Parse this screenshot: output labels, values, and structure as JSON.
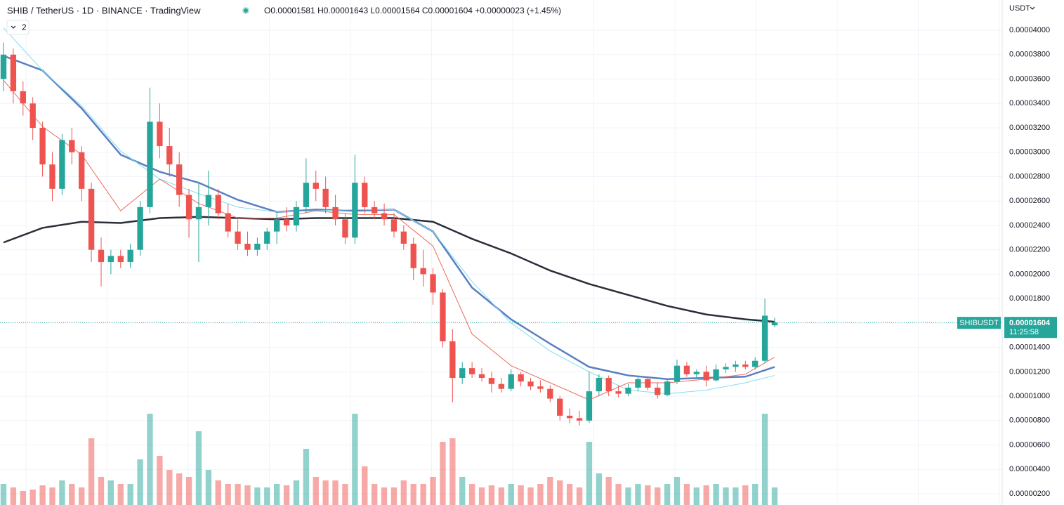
{
  "chart_data": {
    "type": "candlestick",
    "title": "SHIB / TetherUS · 1D · BINANCE · TradingView",
    "ohlc_text": "O0.00001581 H0.00001643 L0.00001564 C0.00001604 +0.00000023 (+1.45%)",
    "indicator_count": 2,
    "currency": "USDT",
    "symbol": "SHIBUSDT",
    "last_price_label": "0.00001604",
    "countdown": "11:25:58",
    "up_color": "#26a69a",
    "down_color": "#ef5350",
    "ylim": [
      1.08e-06,
      4.248e-05
    ],
    "yticks": [
      {
        "value": 4e-05,
        "label": "0.00004000"
      },
      {
        "value": 3.8e-05,
        "label": "0.00003800"
      },
      {
        "value": 3.6e-05,
        "label": "0.00003600"
      },
      {
        "value": 3.4e-05,
        "label": "0.00003400"
      },
      {
        "value": 3.2e-05,
        "label": "0.00003200"
      },
      {
        "value": 3e-05,
        "label": "0.00003000"
      },
      {
        "value": 2.8e-05,
        "label": "0.00002800"
      },
      {
        "value": 2.6e-05,
        "label": "0.00002600"
      },
      {
        "value": 2.4e-05,
        "label": "0.00002400"
      },
      {
        "value": 2.2e-05,
        "label": "0.00002200"
      },
      {
        "value": 2e-05,
        "label": "0.00002000"
      },
      {
        "value": 1.8e-05,
        "label": "0.00001800"
      },
      {
        "value": 1.6e-05,
        "label": "0.00001600"
      },
      {
        "value": 1.4e-05,
        "label": "0.00001400"
      },
      {
        "value": 1.2e-05,
        "label": "0.00001200"
      },
      {
        "value": 1e-05,
        "label": "0.00001000"
      },
      {
        "value": 8e-06,
        "label": "0.00000800"
      },
      {
        "value": 6e-06,
        "label": "0.00000600"
      },
      {
        "value": 4e-06,
        "label": "0.00000400"
      },
      {
        "value": 2e-06,
        "label": "0.00000200"
      }
    ],
    "grid": true,
    "candles": [
      [
        3.6e-05,
        3.9e-05,
        3.5e-05,
        3.8e-05
      ],
      [
        3.8e-05,
        3.85e-05,
        3.4e-05,
        3.5e-05
      ],
      [
        3.5e-05,
        3.58e-05,
        3.3e-05,
        3.4e-05
      ],
      [
        3.4e-05,
        3.45e-05,
        3.1e-05,
        3.2e-05
      ],
      [
        3.2e-05,
        3.25e-05,
        2.8e-05,
        2.9e-05
      ],
      [
        2.9e-05,
        3e-05,
        2.6e-05,
        2.7e-05
      ],
      [
        2.7e-05,
        3.15e-05,
        2.65e-05,
        3.1e-05
      ],
      [
        3.1e-05,
        3.2e-05,
        2.9e-05,
        3e-05
      ],
      [
        3e-05,
        3.05e-05,
        2.6e-05,
        2.7e-05
      ],
      [
        2.7e-05,
        2.75e-05,
        2.1e-05,
        2.2e-05
      ],
      [
        2.2e-05,
        2.3e-05,
        1.9e-05,
        2.1e-05
      ],
      [
        2.1e-05,
        2.2e-05,
        2e-05,
        2.15e-05
      ],
      [
        2.15e-05,
        2.2e-05,
        2.05e-05,
        2.1e-05
      ],
      [
        2.1e-05,
        2.25e-05,
        2.05e-05,
        2.2e-05
      ],
      [
        2.2e-05,
        2.6e-05,
        2.15e-05,
        2.55e-05
      ],
      [
        2.55e-05,
        3.53e-05,
        2.5e-05,
        3.25e-05
      ],
      [
        3.25e-05,
        3.4e-05,
        2.95e-05,
        3.05e-05
      ],
      [
        3.05e-05,
        3.2e-05,
        2.8e-05,
        2.9e-05
      ],
      [
        2.9e-05,
        3e-05,
        2.55e-05,
        2.65e-05
      ],
      [
        2.65e-05,
        2.7e-05,
        2.3e-05,
        2.45e-05
      ],
      [
        2.45e-05,
        2.75e-05,
        2.1e-05,
        2.55e-05
      ],
      [
        2.55e-05,
        2.85e-05,
        2.4e-05,
        2.65e-05
      ],
      [
        2.65e-05,
        2.7e-05,
        2.45e-05,
        2.5e-05
      ],
      [
        2.5e-05,
        2.58e-05,
        2.3e-05,
        2.35e-05
      ],
      [
        2.35e-05,
        2.45e-05,
        2.2e-05,
        2.25e-05
      ],
      [
        2.25e-05,
        2.35e-05,
        2.15e-05,
        2.2e-05
      ],
      [
        2.2e-05,
        2.3e-05,
        2.15e-05,
        2.25e-05
      ],
      [
        2.25e-05,
        2.38e-05,
        2.2e-05,
        2.35e-05
      ],
      [
        2.35e-05,
        2.5e-05,
        2.25e-05,
        2.45e-05
      ],
      [
        2.45e-05,
        2.55e-05,
        2.35e-05,
        2.4e-05
      ],
      [
        2.4e-05,
        2.6e-05,
        2.35e-05,
        2.55e-05
      ],
      [
        2.55e-05,
        2.95e-05,
        2.5e-05,
        2.75e-05
      ],
      [
        2.75e-05,
        2.85e-05,
        2.6e-05,
        2.7e-05
      ],
      [
        2.7e-05,
        2.8e-05,
        2.5e-05,
        2.55e-05
      ],
      [
        2.55e-05,
        2.65e-05,
        2.4e-05,
        2.45e-05
      ],
      [
        2.45e-05,
        2.5e-05,
        2.25e-05,
        2.3e-05
      ],
      [
        2.3e-05,
        2.98e-05,
        2.25e-05,
        2.75e-05
      ],
      [
        2.75e-05,
        2.8e-05,
        2.5e-05,
        2.55e-05
      ],
      [
        2.55e-05,
        2.6e-05,
        2.45e-05,
        2.5e-05
      ],
      [
        2.5e-05,
        2.58e-05,
        2.4e-05,
        2.45e-05
      ],
      [
        2.45e-05,
        2.5e-05,
        2.3e-05,
        2.35e-05
      ],
      [
        2.35e-05,
        2.4e-05,
        2.2e-05,
        2.25e-05
      ],
      [
        2.25e-05,
        2.3e-05,
        1.95e-05,
        2.05e-05
      ],
      [
        2.05e-05,
        2.2e-05,
        1.9e-05,
        2e-05
      ],
      [
        2e-05,
        2.05e-05,
        1.75e-05,
        1.85e-05
      ],
      [
        1.85e-05,
        1.88e-05,
        1.4e-05,
        1.45e-05
      ],
      [
        1.45e-05,
        1.55e-05,
        9.5e-06,
        1.15e-05
      ],
      [
        1.15e-05,
        1.28e-05,
        1.1e-05,
        1.23e-05
      ],
      [
        1.23e-05,
        1.28e-05,
        1.15e-05,
        1.18e-05
      ],
      [
        1.18e-05,
        1.23e-05,
        1.12e-05,
        1.15e-05
      ],
      [
        1.15e-05,
        1.2e-05,
        1.03e-05,
        1.1e-05
      ],
      [
        1.1e-05,
        1.15e-05,
        1.03e-05,
        1.06e-05
      ],
      [
        1.06e-05,
        1.22e-05,
        1.04e-05,
        1.18e-05
      ],
      [
        1.18e-05,
        1.2e-05,
        1.08e-05,
        1.12e-05
      ],
      [
        1.12e-05,
        1.15e-05,
        1.05e-05,
        1.08e-05
      ],
      [
        1.08e-05,
        1.13e-05,
        1.03e-05,
        1.06e-05
      ],
      [
        1.06e-05,
        1.09e-05,
        9.5e-06,
        9.8e-06
      ],
      [
        9.8e-06,
        1e-05,
        8e-06,
        8.4e-06
      ],
      [
        8.4e-06,
        9e-06,
        7.8e-06,
        8.2e-06
      ],
      [
        8.2e-06,
        8.8e-06,
        7.6e-06,
        8e-06
      ],
      [
        8e-06,
        1.2e-05,
        7.8e-06,
        1.04e-05
      ],
      [
        1.04e-05,
        1.18e-05,
        1e-05,
        1.15e-05
      ],
      [
        1.15e-05,
        1.17e-05,
        1e-05,
        1.04e-05
      ],
      [
        1.04e-05,
        1.09e-05,
        9.9e-06,
        1.02e-05
      ],
      [
        1.02e-05,
        1.1e-05,
        1e-05,
        1.07e-05
      ],
      [
        1.07e-05,
        1.17e-05,
        1.04e-05,
        1.14e-05
      ],
      [
        1.14e-05,
        1.16e-05,
        1.05e-05,
        1.07e-05
      ],
      [
        1.07e-05,
        1.11e-05,
        9.8e-06,
        1.01e-05
      ],
      [
        1.01e-05,
        1.14e-05,
        1e-05,
        1.12e-05
      ],
      [
        1.12e-05,
        1.3e-05,
        1.1e-05,
        1.25e-05
      ],
      [
        1.25e-05,
        1.28e-05,
        1.16e-05,
        1.18e-05
      ],
      [
        1.18e-05,
        1.22e-05,
        1.14e-05,
        1.2e-05
      ],
      [
        1.2e-05,
        1.25e-05,
        1.08e-05,
        1.13e-05
      ],
      [
        1.13e-05,
        1.26e-05,
        1.12e-05,
        1.22e-05
      ],
      [
        1.22e-05,
        1.27e-05,
        1.19e-05,
        1.24e-05
      ],
      [
        1.24e-05,
        1.29e-05,
        1.2e-05,
        1.26e-05
      ],
      [
        1.26e-05,
        1.29e-05,
        1.22e-05,
        1.24e-05
      ],
      [
        1.24e-05,
        1.32e-05,
        1.22e-05,
        1.29e-05
      ],
      [
        1.29e-05,
        1.8e-05,
        1.27e-05,
        1.66e-05
      ],
      [
        1.581e-05,
        1.643e-05,
        1.564e-05,
        1.604e-05
      ]
    ],
    "volume_ylim": [
      0,
      140
    ],
    "volume": [
      30,
      25,
      20,
      22,
      28,
      25,
      35,
      30,
      25,
      95,
      40,
      35,
      30,
      30,
      65,
      130,
      70,
      50,
      45,
      40,
      105,
      50,
      35,
      30,
      30,
      28,
      25,
      25,
      30,
      28,
      35,
      80,
      40,
      35,
      35,
      30,
      130,
      55,
      30,
      25,
      25,
      35,
      30,
      30,
      40,
      90,
      95,
      40,
      30,
      25,
      28,
      25,
      30,
      28,
      25,
      30,
      40,
      35,
      30,
      25,
      90,
      45,
      40,
      30,
      25,
      30,
      28,
      25,
      30,
      40,
      30,
      25,
      28,
      30,
      25,
      25,
      28,
      30,
      130,
      25
    ],
    "ma_x": [
      0,
      4,
      8,
      12,
      16,
      20,
      24,
      28,
      32,
      36,
      40,
      44,
      48,
      52,
      56,
      60,
      64,
      68,
      72,
      76,
      79
    ],
    "ma_lines": [
      {
        "color": "#2a2e39",
        "width": 2.5,
        "values": [
          2.26e-05,
          2.38e-05,
          2.43e-05,
          2.42e-05,
          2.46e-05,
          2.47e-05,
          2.46e-05,
          2.45e-05,
          2.46e-05,
          2.46e-05,
          2.46e-05,
          2.43e-05,
          2.29e-05,
          2.17e-05,
          2.03e-05,
          1.92e-05,
          1.83e-05,
          1.74e-05,
          1.67e-05,
          1.63e-05,
          1.61e-05
        ]
      },
      {
        "color": "#5b7fc0",
        "width": 2.5,
        "values": [
          3.79e-05,
          3.67e-05,
          3.36e-05,
          2.98e-05,
          2.84e-05,
          2.75e-05,
          2.61e-05,
          2.51e-05,
          2.53e-05,
          2.52e-05,
          2.53e-05,
          2.35e-05,
          1.89e-05,
          1.63e-05,
          1.43e-05,
          1.24e-05,
          1.17e-05,
          1.14e-05,
          1.15e-05,
          1.16e-05,
          1.24e-05
        ]
      },
      {
        "color": "#7fdfef",
        "width": 1,
        "values": [
          4.02e-05,
          3.67e-05,
          3.38e-05,
          3.01e-05,
          2.78e-05,
          2.66e-05,
          2.55e-05,
          2.51e-05,
          2.52e-05,
          2.53e-05,
          2.53e-05,
          2.35e-05,
          1.94e-05,
          1.6e-05,
          1.37e-05,
          1.2e-05,
          1.05e-05,
          1.02e-05,
          1.05e-05,
          1.11e-05,
          1.17e-05
        ]
      },
      {
        "color": "#ef6a5a",
        "width": 1,
        "values": [
          3.59e-05,
          3.21e-05,
          2.98e-05,
          2.52e-05,
          2.78e-05,
          2.58e-05,
          2.46e-05,
          2.46e-05,
          2.52e-05,
          2.49e-05,
          2.49e-05,
          2.23e-05,
          1.51e-05,
          1.25e-05,
          1.11e-05,
          9.7e-06,
          1.11e-05,
          1.11e-05,
          1.14e-05,
          1.18e-05,
          1.32e-05
        ]
      }
    ]
  }
}
